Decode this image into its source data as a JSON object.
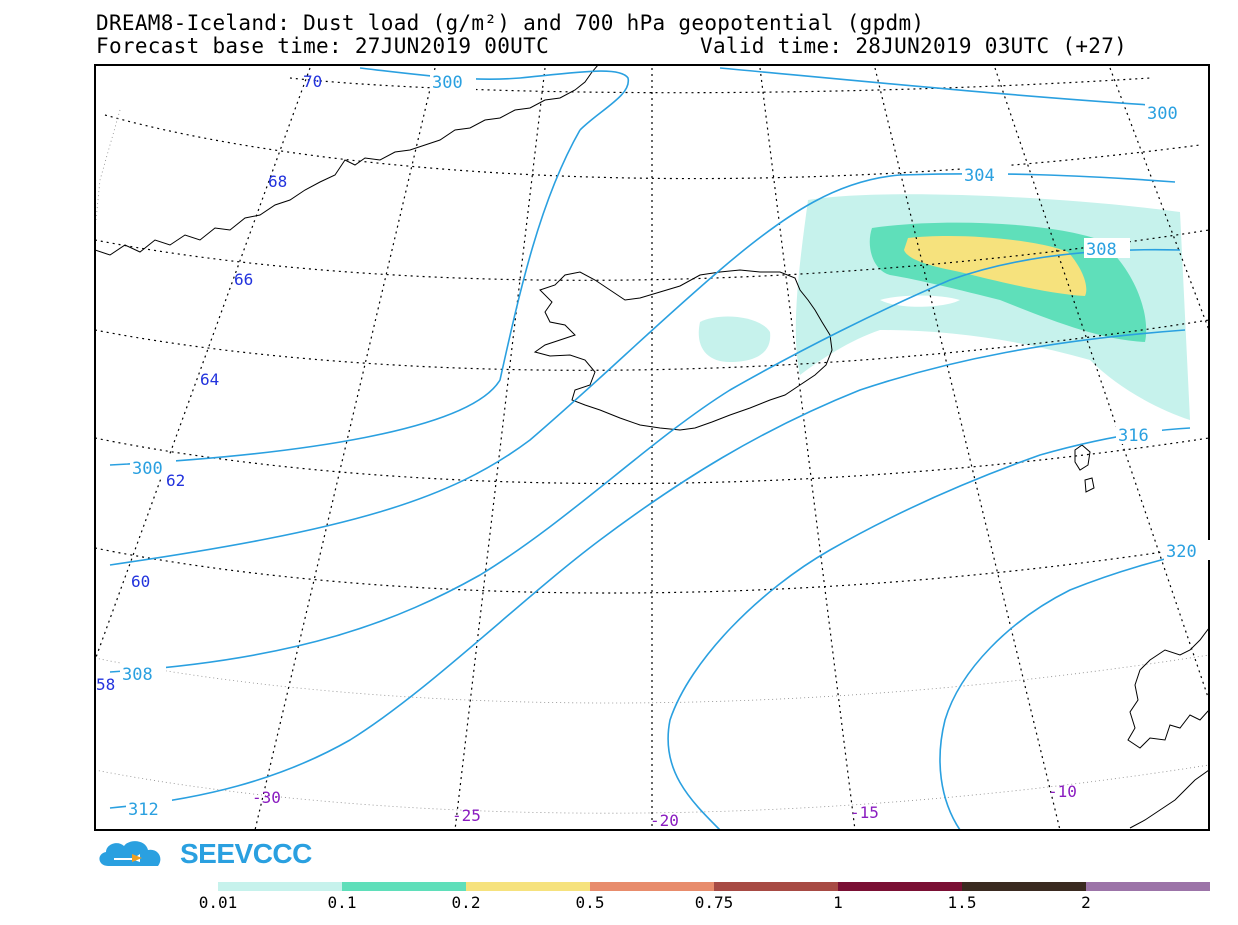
{
  "title": {
    "line1": "DREAM8-Iceland: Dust load (g/m²) and 700 hPa geopotential (gpdm)",
    "line2_left": "Forecast base time: 27JUN2019 00UTC",
    "line2_right": "Valid time: 28JUN2019 03UTC (+27)"
  },
  "latitude_labels": [
    "70",
    "68",
    "66",
    "64",
    "62",
    "60",
    "58"
  ],
  "longitude_labels": [
    "-30",
    "-25",
    "-20",
    "-15",
    "-10"
  ],
  "contour_labels": [
    "300",
    "300",
    "304",
    "308",
    "300",
    "316",
    "320",
    "308",
    "312"
  ],
  "logo": {
    "text": "SEEVCCC"
  },
  "colorbar": {
    "ticks": [
      "0.01",
      "0.1",
      "0.2",
      "0.5",
      "0.75",
      "1",
      "1.5",
      "2"
    ],
    "colors": [
      "#c6f2ec",
      "#5fdfba",
      "#f6e27d",
      "#e88c6c",
      "#a74a44",
      "#7a0f34",
      "#3a2a20",
      "#9c74a8"
    ]
  },
  "colors": {
    "contour": "#2aa0e0",
    "lat_label": "#2233dd",
    "lon_label": "#8a1cc0",
    "dust_low": "#c6f2ec",
    "dust_mid": "#5fdfba",
    "dust_high": "#f6e27d"
  }
}
